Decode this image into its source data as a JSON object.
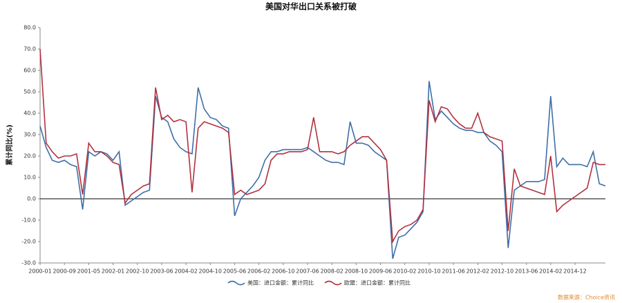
{
  "chart_data": {
    "type": "line",
    "title": "美国对华出口关系被打破",
    "y_label": "累计同比(%)",
    "source": "数据来源：Choice资讯",
    "categories": [
      "2000-01",
      null,
      null,
      null,
      "2000-09",
      null,
      null,
      null,
      "2001-05",
      null,
      null,
      null,
      "2002-01",
      null,
      null,
      null,
      "2002-10",
      null,
      null,
      null,
      "2003-06",
      null,
      null,
      null,
      "2004-02",
      null,
      null,
      null,
      "2004-10",
      null,
      null,
      null,
      "2005-06",
      null,
      null,
      null,
      "2006-02",
      null,
      null,
      null,
      "2006-10",
      null,
      null,
      null,
      "2007-06",
      null,
      null,
      null,
      "2008-02",
      null,
      null,
      null,
      "2008-10",
      null,
      null,
      null,
      "2009-06",
      null,
      null,
      null,
      "2010-02",
      null,
      null,
      null,
      "2010-10",
      null,
      null,
      null,
      "2011-06",
      null,
      null,
      null,
      "2012-02",
      null,
      null,
      null,
      "2012-10",
      null,
      null,
      null,
      "2013-06",
      null,
      null,
      null,
      "2014-02",
      null,
      null,
      null,
      "2014-12",
      null,
      null,
      null,
      null,
      null
    ],
    "series": [
      {
        "name": "美国：进口金额：累计同比",
        "color": "#3d6ea8",
        "values": [
          34,
          24,
          18,
          17,
          18,
          16,
          15,
          -5,
          22,
          20,
          22,
          21,
          18,
          22,
          -3,
          -1,
          1,
          3,
          4,
          48,
          38,
          36,
          28,
          24,
          22,
          21,
          52,
          42,
          38,
          37,
          34,
          33,
          -8,
          0,
          3,
          6,
          10,
          18,
          22,
          22,
          23,
          23,
          23,
          23,
          24,
          22,
          20,
          18,
          17,
          17,
          16,
          36,
          26,
          26,
          25,
          22,
          20,
          18,
          -28,
          -18,
          -17,
          -14,
          -11,
          -6,
          55,
          37,
          41,
          38,
          35,
          33,
          32,
          32,
          31,
          31,
          27,
          25,
          22,
          -23,
          4,
          6,
          8,
          8,
          8,
          9,
          48,
          15,
          19,
          16,
          16,
          16,
          15,
          22,
          7,
          6
        ]
      },
      {
        "name": "欧盟：进口金额：累计同比",
        "color": "#b2303f",
        "values": [
          70,
          26,
          22,
          19,
          20,
          20,
          21,
          2,
          26,
          22,
          22,
          20,
          17,
          16,
          -2,
          2,
          4,
          6,
          7,
          52,
          37,
          39,
          36,
          37,
          36,
          3,
          33,
          36,
          35,
          34,
          33,
          31,
          2,
          4,
          2,
          3,
          4,
          7,
          18,
          21,
          21,
          22,
          22,
          22,
          23,
          38,
          22,
          22,
          22,
          21,
          22,
          25,
          27,
          29,
          29,
          26,
          23,
          18,
          -20,
          -15,
          -13,
          -12,
          -10,
          -5,
          46,
          36,
          43,
          42,
          38,
          35,
          33,
          33,
          40,
          31,
          29,
          28,
          27,
          -15,
          14,
          6,
          5,
          4,
          3,
          2,
          20,
          -6,
          -3,
          -1,
          1,
          3,
          5,
          17,
          16,
          16
        ]
      }
    ],
    "ylim": [
      -30,
      80
    ],
    "yticks": [
      {
        "value": -30,
        "label": "-30.0"
      },
      {
        "value": -20,
        "label": "-20.0"
      },
      {
        "value": -10,
        "label": "-10.0"
      },
      {
        "value": 0,
        "label": "0.0"
      },
      {
        "value": 10,
        "label": "10.0"
      },
      {
        "value": 20,
        "label": "20.0"
      },
      {
        "value": 30,
        "label": "30.0"
      },
      {
        "value": 40,
        "label": "40.0"
      },
      {
        "value": 50,
        "label": "50.0"
      },
      {
        "value": 60,
        "label": "60.0"
      },
      {
        "value": 70,
        "label": "70.0"
      },
      {
        "value": 80,
        "label": "80.0"
      }
    ],
    "zero_line": true
  }
}
